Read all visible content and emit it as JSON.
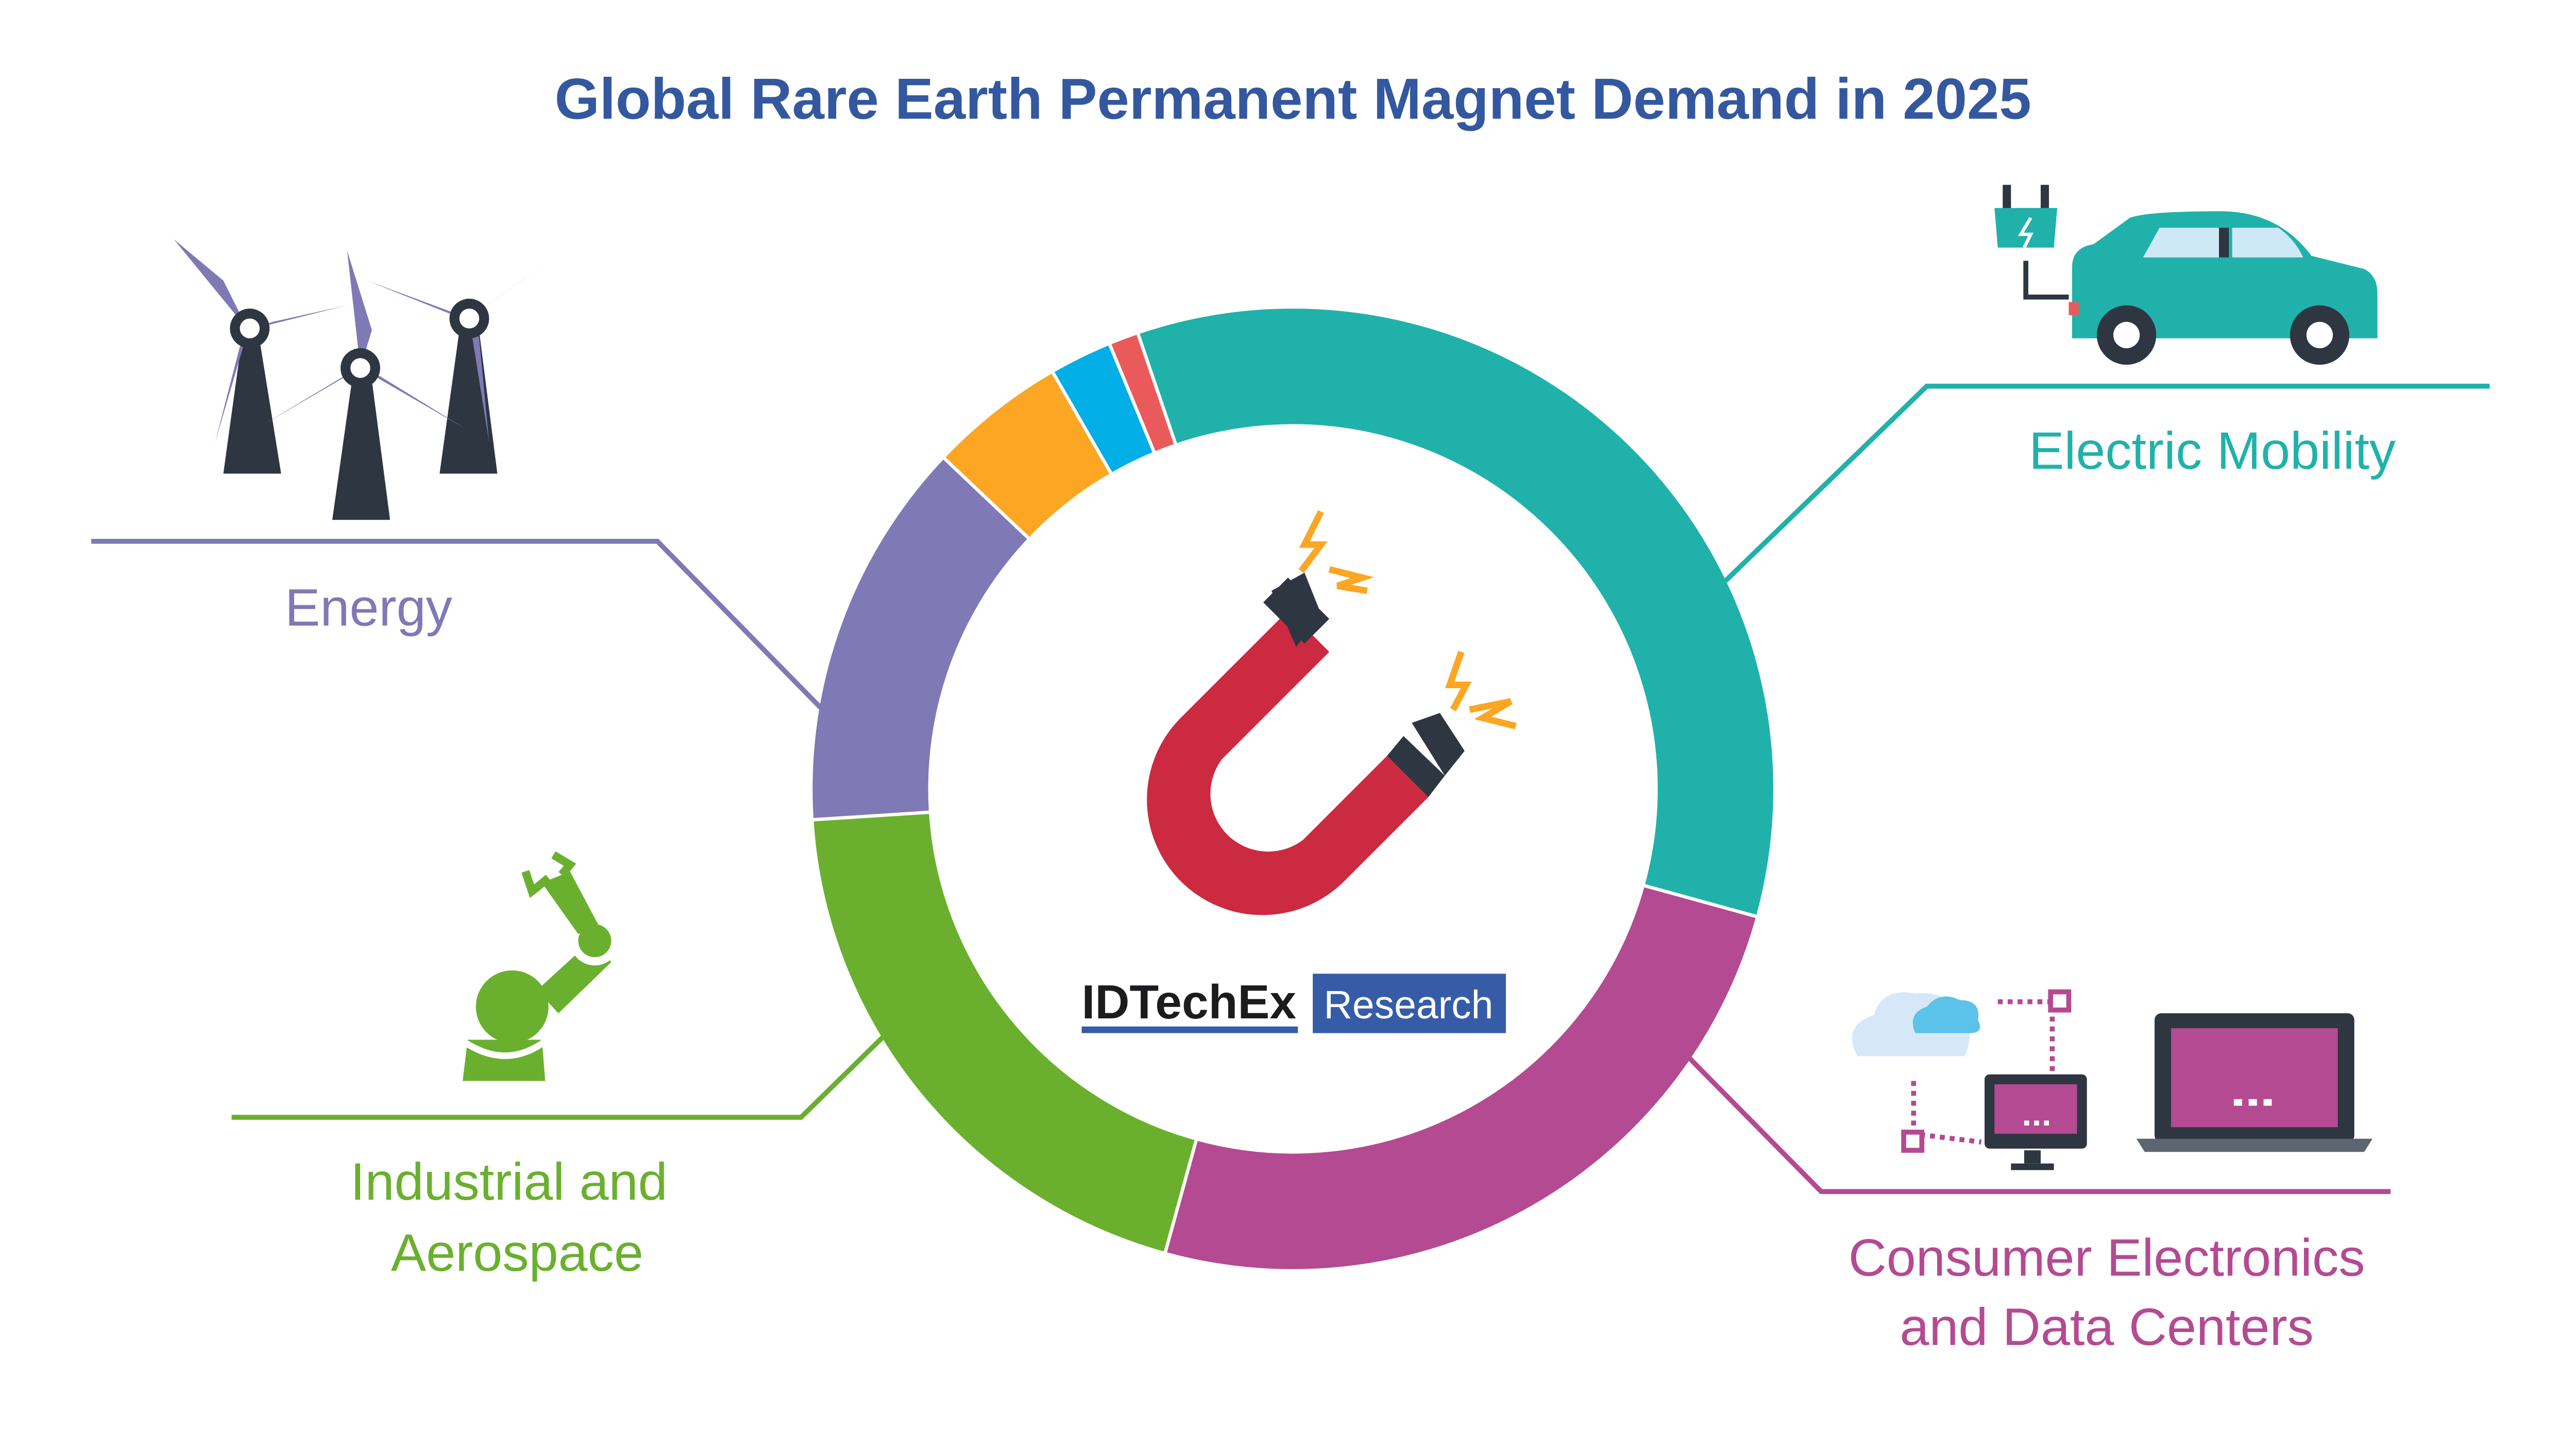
{
  "title": "Global Rare Earth Permanent Magnet Demand in 2025",
  "logo": {
    "brand": "IDTechEx",
    "tag": "Research"
  },
  "colors": {
    "title": "#34589f",
    "energy": "#7f79b5",
    "mobility": "#20b2aa",
    "industrial": "#6ab02e",
    "consumer": "#b44a92",
    "orange": "#fda623",
    "blue": "#02aee6",
    "red": "#eb5a5a"
  },
  "labels": {
    "energy": "Energy",
    "mobility": "Electric Mobility",
    "industrial_1": "Industrial and",
    "industrial_2": "Aerospace",
    "consumer_1": "Consumer Electronics",
    "consumer_2": "and Data Centers"
  },
  "chart_data": {
    "type": "pie",
    "title": "Global Rare Earth Permanent Magnet Demand in 2025",
    "donut": true,
    "units": "percent share (estimated from arc angles)",
    "start_angle_deg": -18.8,
    "segments": [
      {
        "name": "Electric Mobility",
        "value": 34.5,
        "color": "#20b2aa"
      },
      {
        "name": "Consumer Electronics and Data Centers",
        "value": 25.0,
        "color": "#b44a92"
      },
      {
        "name": "Industrial and Aerospace",
        "value": 19.7,
        "color": "#6ab02e"
      },
      {
        "name": "Energy",
        "value": 13.1,
        "color": "#7f79b5"
      },
      {
        "name": null,
        "value": 4.6,
        "color": "#fda623"
      },
      {
        "name": null,
        "value": 2.1,
        "color": "#02aee6"
      },
      {
        "name": null,
        "value": 1.0,
        "color": "#eb5a5a"
      }
    ]
  }
}
